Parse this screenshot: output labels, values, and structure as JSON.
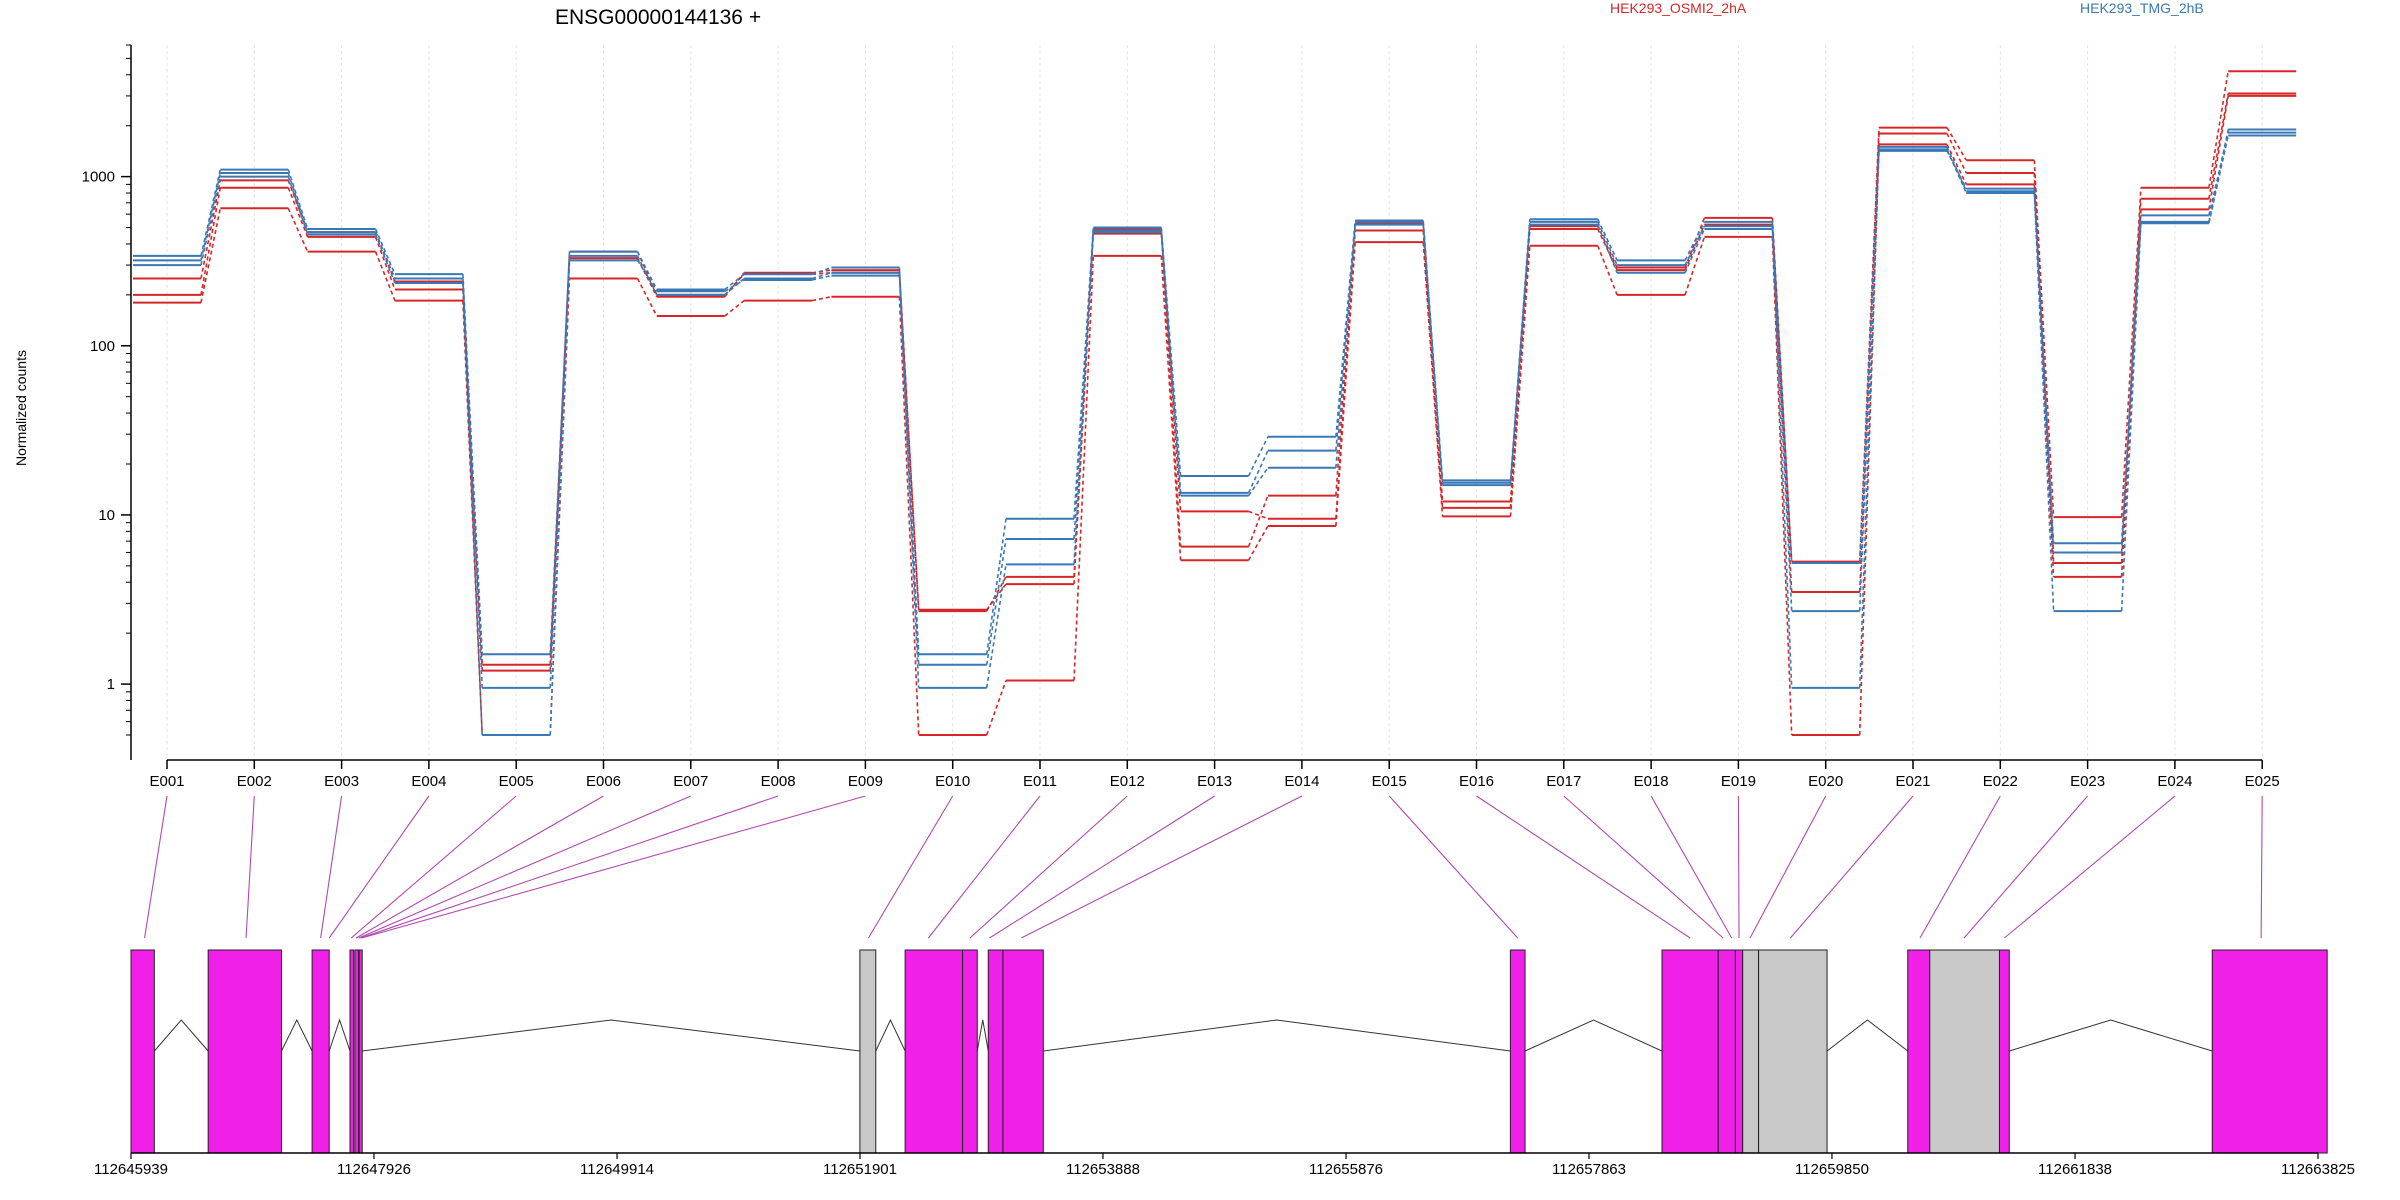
{
  "title": "ENSG00000144136 +",
  "legend": {
    "position": "top-right",
    "entries": [
      {
        "name": "HEK293_OSMI2_2hA",
        "color": "#d62728"
      },
      {
        "name": "HEK293_TMG_2hB",
        "color": "#3a78b5"
      }
    ]
  },
  "chart_data": [
    {
      "type": "line",
      "title": "ENSG00000144136 +",
      "ylabel": "Normalized counts",
      "xlabel": "",
      "yscale": "log",
      "ylim": [
        0.5,
        6000
      ],
      "yticks": [
        1,
        10,
        100,
        1000
      ],
      "ytick_labels": [
        "1",
        "10",
        "100",
        "1000"
      ],
      "grid": "vertical",
      "categories": [
        "E001",
        "E002",
        "E003",
        "E004",
        "E005",
        "E006",
        "E007",
        "E008",
        "E009",
        "E010",
        "E011",
        "E012",
        "E013",
        "E014",
        "E015",
        "E016",
        "E017",
        "E018",
        "E019",
        "E020",
        "E021",
        "E022",
        "E023",
        "E024",
        "E025"
      ],
      "series": [
        {
          "name": "HEK293_OSMI2_2hA",
          "color": "#d62728",
          "values": [
            200,
            860,
            440,
            215,
            1.2,
            330,
            195,
            270,
            280,
            2.7,
            4.3,
            460,
            10.5,
            9.5,
            480,
            11,
            490,
            280,
            520,
            3.5,
            1800,
            1050,
            5.2,
            740,
            3100
          ]
        },
        {
          "name": "HEK293_OSMI2_2hA",
          "color": "#d62728",
          "values": [
            180,
            650,
            360,
            185,
            0.5,
            250,
            150,
            185,
            195,
            0.5,
            1.05,
            340,
            5.4,
            8.6,
            410,
            9.8,
            390,
            200,
            440,
            0.5,
            1550,
            900,
            4.3,
            640,
            3000
          ]
        },
        {
          "name": "HEK293_OSMI2_2hA",
          "color": "#d62728",
          "values": [
            250,
            950,
            470,
            240,
            1.3,
            360,
            200,
            265,
            270,
            2.75,
            3.9,
            490,
            6.5,
            13,
            530,
            12,
            510,
            290,
            570,
            5.3,
            1950,
            1250,
            9.7,
            860,
            4200
          ]
        },
        {
          "name": "HEK293_TMG_2hB",
          "color": "#3a78b5",
          "values": [
            340,
            1100,
            490,
            265,
            1.5,
            360,
            215,
            265,
            290,
            1.5,
            9.5,
            500,
            17,
            29,
            550,
            16,
            560,
            320,
            540,
            5.2,
            1500,
            820,
            6.8,
            540,
            1900
          ]
        },
        {
          "name": "HEK293_TMG_2hB",
          "color": "#3a78b5",
          "values": [
            320,
            1050,
            470,
            250,
            0.95,
            340,
            200,
            250,
            270,
            0.95,
            5.1,
            470,
            13,
            19,
            520,
            15,
            540,
            300,
            510,
            0.95,
            1450,
            800,
            2.7,
            530,
            1750
          ]
        },
        {
          "name": "HEK293_TMG_2hB",
          "color": "#3a78b5",
          "values": [
            300,
            1000,
            455,
            235,
            0.5,
            320,
            210,
            245,
            260,
            1.3,
            7.2,
            480,
            13.5,
            24,
            540,
            15.5,
            520,
            270,
            490,
            2.7,
            1420,
            850,
            6.0,
            590,
            1820
          ]
        }
      ]
    },
    {
      "type": "diagram",
      "title": "",
      "xlabel": "",
      "xlim": [
        112645939,
        112663825
      ],
      "xticks": [
        112645939,
        112647926,
        112649914,
        112651901,
        112653888,
        112655876,
        112657863,
        112659850,
        112661838,
        112663825
      ],
      "xtick_labels": [
        "112645939",
        "112647926",
        "112649914",
        "112651901",
        "112653888",
        "112655876",
        "112657863",
        "112659850",
        "112661838",
        "112663825"
      ],
      "exons": [
        {
          "start": 112645939,
          "end": 112646130,
          "color": "#f020e8"
        },
        {
          "start": 112646570,
          "end": 112647170,
          "color": "#f020e8"
        },
        {
          "start": 112647420,
          "end": 112647560,
          "color": "#f020e8"
        },
        {
          "start": 112647730,
          "end": 112647760,
          "color": "#f020e8"
        },
        {
          "start": 112647770,
          "end": 112647800,
          "color": "#f020e8"
        },
        {
          "start": 112647805,
          "end": 112647830,
          "color": "#f020e8"
        },
        {
          "start": 112651900,
          "end": 112652030,
          "color": "#c8c8c8"
        },
        {
          "start": 112652270,
          "end": 112652740,
          "color": "#f020e8"
        },
        {
          "start": 112652740,
          "end": 112652860,
          "color": "#f020e8"
        },
        {
          "start": 112652950,
          "end": 112653070,
          "color": "#f020e8"
        },
        {
          "start": 112653070,
          "end": 112653400,
          "color": "#f020e8"
        },
        {
          "start": 112657220,
          "end": 112657340,
          "color": "#f020e8"
        },
        {
          "start": 112658460,
          "end": 112658920,
          "color": "#f020e8"
        },
        {
          "start": 112658920,
          "end": 112659060,
          "color": "#f020e8"
        },
        {
          "start": 112659060,
          "end": 112659120,
          "color": "#f020e8"
        },
        {
          "start": 112659120,
          "end": 112659250,
          "color": "#c8c8c8"
        },
        {
          "start": 112659250,
          "end": 112659810,
          "color": "#c8c8c8"
        },
        {
          "start": 112660470,
          "end": 112660650,
          "color": "#f020e8"
        },
        {
          "start": 112660650,
          "end": 112661220,
          "color": "#c8c8c8"
        },
        {
          "start": 112661220,
          "end": 112661300,
          "color": "#f020e8"
        },
        {
          "start": 112662960,
          "end": 112663900,
          "color": "#f020e8"
        }
      ],
      "connectors": [
        {
          "exon": "E001",
          "position": 112646050
        },
        {
          "exon": "E002",
          "position": 112646880
        },
        {
          "exon": "E003",
          "position": 112647490
        },
        {
          "exon": "E004",
          "position": 112647560
        },
        {
          "exon": "E005",
          "position": 112647740
        },
        {
          "exon": "E006",
          "position": 112647780
        },
        {
          "exon": "E007",
          "position": 112647800
        },
        {
          "exon": "E008",
          "position": 112647815
        },
        {
          "exon": "E009",
          "position": 112647825
        },
        {
          "exon": "E010",
          "position": 112651970
        },
        {
          "exon": "E011",
          "position": 112652460
        },
        {
          "exon": "E012",
          "position": 112652800
        },
        {
          "exon": "E013",
          "position": 112652960
        },
        {
          "exon": "E014",
          "position": 112653220
        },
        {
          "exon": "E015",
          "position": 112657280
        },
        {
          "exon": "E016",
          "position": 112658690
        },
        {
          "exon": "E017",
          "position": 112658960
        },
        {
          "exon": "E018",
          "position": 112659030
        },
        {
          "exon": "E019",
          "position": 112659090
        },
        {
          "exon": "E020",
          "position": 112659180
        },
        {
          "exon": "E021",
          "position": 112659510
        },
        {
          "exon": "E022",
          "position": 112660570
        },
        {
          "exon": "E023",
          "position": 112660930
        },
        {
          "exon": "E024",
          "position": 112661260
        },
        {
          "exon": "E025",
          "position": 112663360
        }
      ]
    }
  ]
}
